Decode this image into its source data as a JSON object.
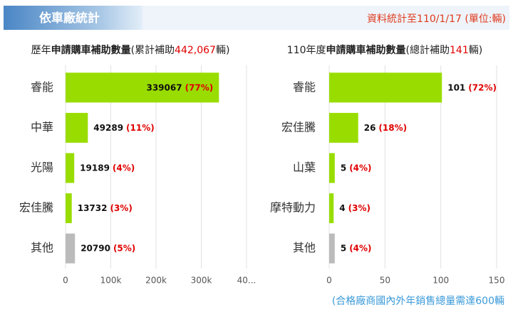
{
  "header": {
    "title": "依車廠統計",
    "note": "資料統計至110/1/17 (單位:輛)"
  },
  "footer": "(合格廠商國內外年銷售總量需達600輛",
  "chart_data": [
    {
      "type": "bar",
      "orientation": "horizontal",
      "title": [
        "歷年",
        "申請購車補助數量",
        "(累計補助",
        "442,067",
        "輛)"
      ],
      "categories": [
        "睿能",
        "中華",
        "光陽",
        "宏佳騰",
        "其他"
      ],
      "values": [
        339067,
        49289,
        19189,
        13732,
        20790
      ],
      "share_labels": [
        "(77%)",
        "(11%)",
        "(4%)",
        "(3%)",
        "(5%)"
      ],
      "colors": [
        "#99dd00",
        "#99dd00",
        "#99dd00",
        "#99dd00",
        "#bbbbbb"
      ],
      "xlim": [
        0,
        400000
      ],
      "xticks": [
        0,
        {
          "value": 100000,
          "label": "100k"
        },
        {
          "value": 200000,
          "label": "200k"
        },
        {
          "value": 300000,
          "label": "300k"
        },
        {
          "value": 400000,
          "label": "40..."
        }
      ],
      "grid": true
    },
    {
      "type": "bar",
      "orientation": "horizontal",
      "title": [
        "110年度",
        "申請購車補助數量",
        "(總計補助",
        "141",
        "輛)"
      ],
      "categories": [
        "睿能",
        "宏佳騰",
        "山葉",
        "摩特動力",
        "其他"
      ],
      "values": [
        101,
        26,
        5,
        4,
        5
      ],
      "share_labels": [
        "(72%)",
        "(18%)",
        "(4%)",
        "(3%)",
        "(4%)"
      ],
      "colors": [
        "#99dd00",
        "#99dd00",
        "#99dd00",
        "#99dd00",
        "#bbbbbb"
      ],
      "xlim": [
        0,
        150
      ],
      "xticks": [
        0,
        50,
        100,
        150
      ],
      "grid": true
    }
  ]
}
